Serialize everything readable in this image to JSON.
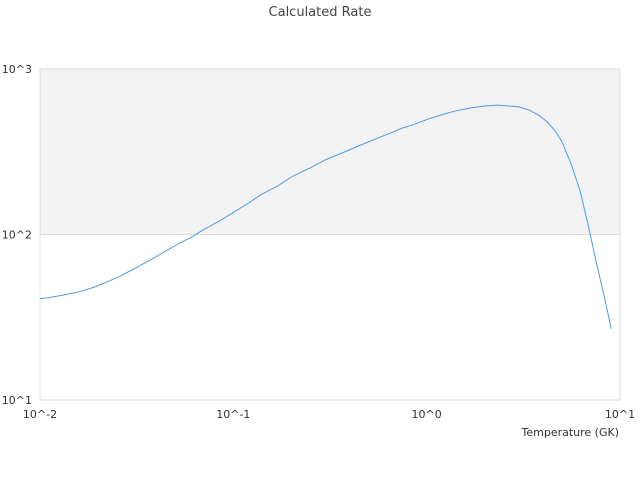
{
  "chart_data": {
    "type": "line",
    "title": "Calculated Rate",
    "xlabel": "Temperature (GK)",
    "ylabel": "",
    "x_scale": "log",
    "y_scale": "log",
    "xlim": [
      0.01,
      10
    ],
    "ylim": [
      10,
      1000
    ],
    "x_ticks": [
      0.01,
      0.1,
      1,
      10
    ],
    "y_ticks": [
      10,
      100,
      1000
    ],
    "x_tick_labels": [
      "10^-2",
      "10^-1",
      "10^0",
      "10^1"
    ],
    "y_tick_labels": [
      "10^1",
      "10^2",
      "10^3"
    ],
    "grid": "horizontal",
    "shaded_band": {
      "y_from": 100,
      "y_to": 1000,
      "color": "#f3f3f3"
    },
    "series": [
      {
        "color": "#4a9de8",
        "x": [
          0.01,
          0.011,
          0.0125,
          0.0145,
          0.0165,
          0.019,
          0.022,
          0.026,
          0.031,
          0.037,
          0.044,
          0.052,
          0.06,
          0.07,
          0.085,
          0.1,
          0.12,
          0.14,
          0.17,
          0.2,
          0.25,
          0.3,
          0.37,
          0.45,
          0.55,
          0.65,
          0.75,
          0.85,
          1.0,
          1.2,
          1.4,
          1.7,
          2.0,
          2.3,
          2.7,
          3.0,
          3.4,
          3.8,
          4.2,
          4.6,
          5.0,
          5.6,
          6.2,
          6.8,
          7.5,
          8.3,
          9.0
        ],
        "y": [
          41,
          41.5,
          42.6,
          44,
          45.6,
          48,
          51.5,
          56,
          62.5,
          70,
          78.5,
          88,
          95.5,
          107,
          121,
          136,
          155,
          175,
          197,
          223,
          253,
          283,
          313,
          345,
          380,
          410,
          440,
          460,
          495,
          530,
          557,
          583,
          598,
          605,
          597,
          590,
          565,
          525,
          480,
          425,
          365,
          265,
          185,
          118,
          70,
          42,
          27
        ]
      }
    ]
  }
}
